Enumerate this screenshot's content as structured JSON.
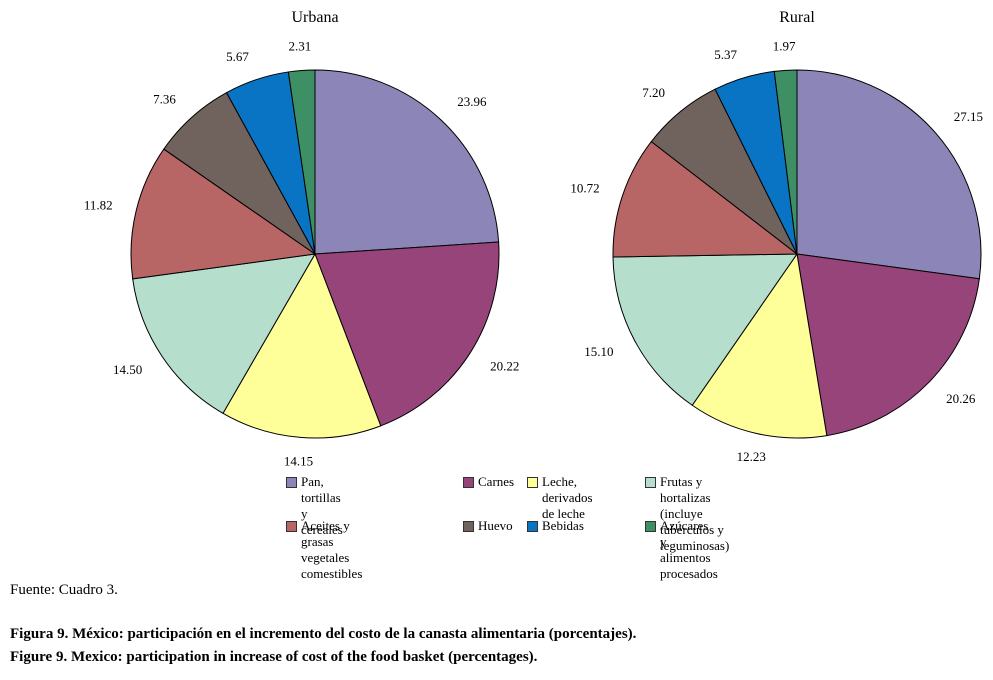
{
  "chart_data": {
    "type": "pie",
    "categories": [
      "Pan, tortillas y cereales",
      "Carnes",
      "Leche, derivados de leche",
      "Frutas y hortalizas (incluye tubérculos y leguminosas)",
      "Aceites y grasas vegetales comestibles",
      "Huevo",
      "Bebidas",
      "Azúcares y alimentos procesados"
    ],
    "colors": [
      "#8c86b8",
      "#96447a",
      "#ffff99",
      "#b5dfcc",
      "#b86565",
      "#70625c",
      "#0a74c4",
      "#3f8f64"
    ],
    "series": [
      {
        "name": "Urbana",
        "values": [
          23.96,
          20.22,
          14.15,
          14.5,
          11.82,
          7.36,
          5.67,
          2.31
        ],
        "labels": [
          "23.96",
          "20.22",
          "14.15",
          "14.50",
          "11.82",
          "7.36",
          "5.67",
          "2.31"
        ]
      },
      {
        "name": "Rural",
        "values": [
          27.15,
          20.26,
          12.23,
          15.1,
          10.72,
          7.2,
          5.37,
          1.97
        ],
        "labels": [
          "27.15",
          "20.26",
          "12.23",
          "15.10",
          "10.72",
          "7.20",
          "5.37",
          "1.97"
        ]
      }
    ],
    "legend": {
      "items": [
        "Pan, tortillas y cereales",
        "Carnes",
        "Leche, derivados\nde leche",
        "Frutas y hortalizas (incluye\ntubérculos y leguminosas)",
        "Aceites y grasas vegetales\ncomestibles",
        "Huevo",
        "Bebidas",
        "Azúcares y alimentos procesados"
      ],
      "placement": "bottom"
    }
  },
  "source": "Fuente: Cuadro 3.",
  "caption_es": "Figura 9. México: participación en el incremento del costo de la canasta alimentaria (porcentajes).",
  "caption_en": "Figure 9. Mexico: participation in increase of cost of the food basket (percentages)."
}
